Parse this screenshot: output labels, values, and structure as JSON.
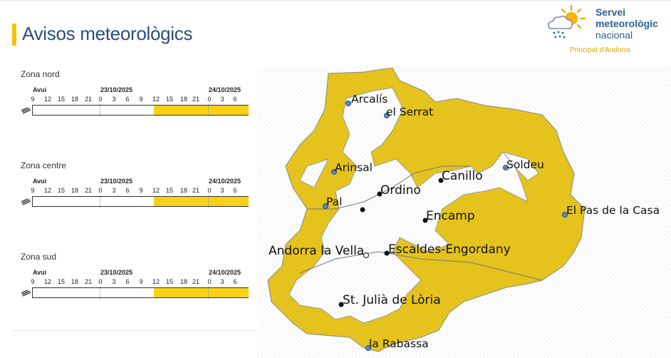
{
  "page": {
    "title": "Avisos meteorològics"
  },
  "logo": {
    "line1": "Servei",
    "line2": "meteorològic",
    "line3": "nacional",
    "sub": "Principat d'Andorra",
    "icon": "sun-cloud-rain-icon"
  },
  "timeline": {
    "day_labels": [
      "Avui",
      "23/10/2025",
      "24/10/2025"
    ],
    "hours": [
      "9",
      "12",
      "15",
      "18",
      "21",
      "0",
      "3",
      "6",
      "9",
      "12",
      "15",
      "18",
      "21",
      "0",
      "3",
      "6"
    ]
  },
  "zones": [
    {
      "name": "Zona nord",
      "warning_level": "yellow",
      "warning_from_hour_index": 9,
      "warning_to_hour_index": 16
    },
    {
      "name": "Zona centre",
      "warning_level": "yellow",
      "warning_from_hour_index": 9,
      "warning_to_hour_index": 16
    },
    {
      "name": "Zona sud",
      "warning_level": "yellow",
      "warning_from_hour_index": 9,
      "warning_to_hour_index": 16
    }
  ],
  "colors": {
    "warning_yellow": "#f9d218",
    "map_yellow": "#e8c61e",
    "title_blue": "#2a4f7c",
    "logo_orange": "#e0a400"
  },
  "map": {
    "stations": [
      "Arcalís",
      "el Serrat",
      "Arinsal",
      "Pal",
      "Soldeu",
      "El Pas de la Casa",
      "la Rabassa"
    ],
    "towns": [
      "Ordino",
      "Canillo",
      "Encamp",
      "Andorra la Vella",
      "Escaldes-Engordany",
      "St. Julià de Lòria"
    ]
  }
}
